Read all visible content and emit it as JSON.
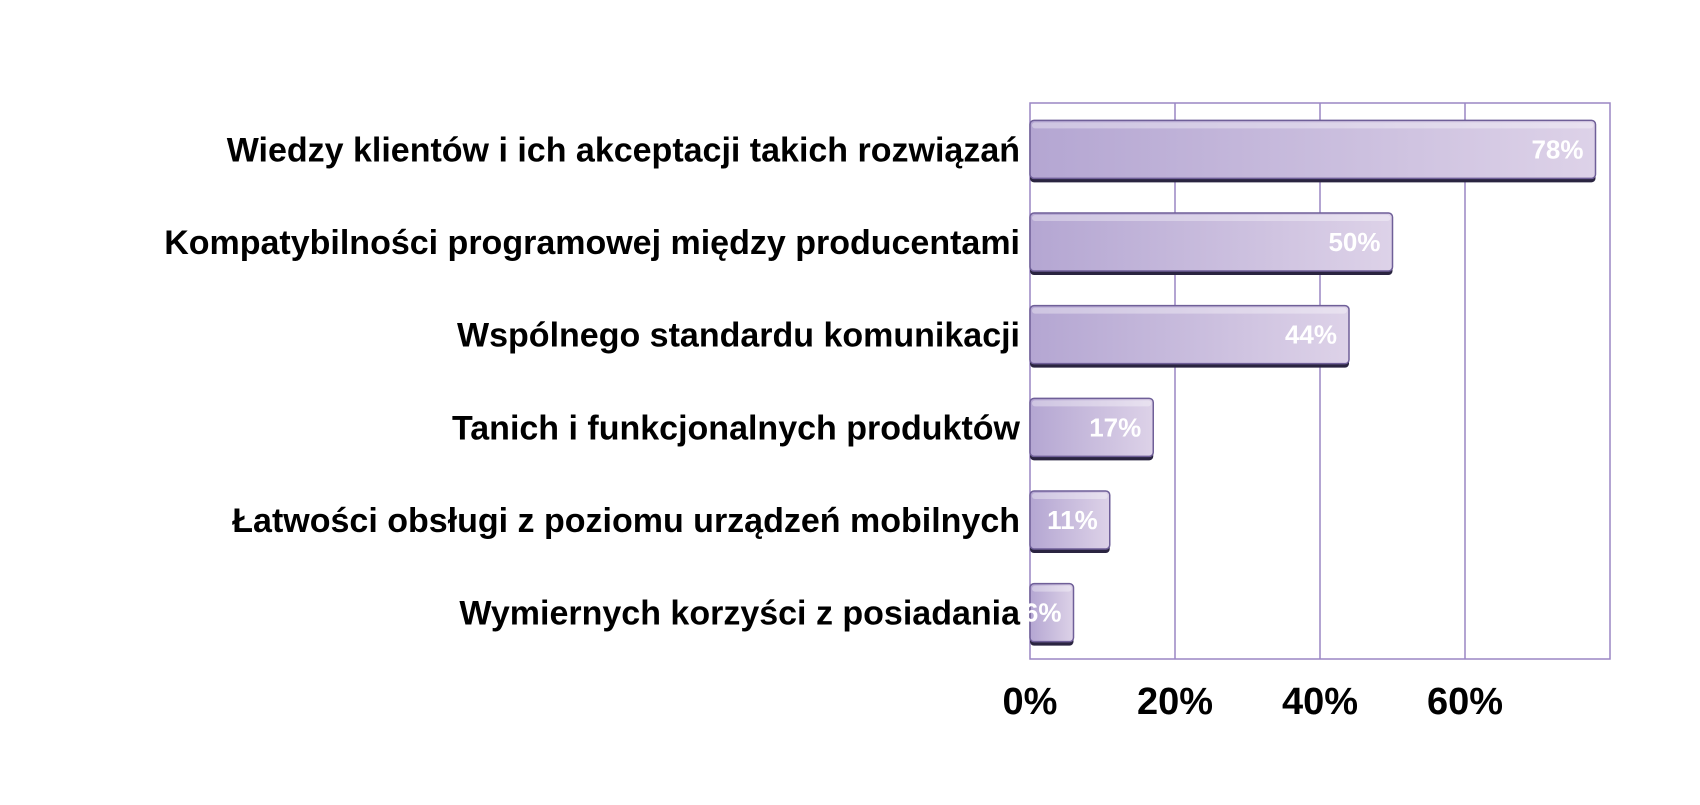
{
  "chart_data": {
    "type": "bar",
    "orientation": "horizontal",
    "title": "",
    "xlabel": "",
    "ylabel": "",
    "categories": [
      "Wiedzy klientów i ich akceptacji takich rozwiązań",
      "Kompatybilności programowej między producentami",
      "Wspólnego standardu komunikacji",
      "Tanich i funkcjonalnych produktów",
      "Łatwości obsługi z poziomu urządzeń mobilnych",
      "Wymiernych korzyści z posiadania"
    ],
    "values": [
      78,
      50,
      44,
      17,
      11,
      6
    ],
    "data_labels": [
      "78%",
      "50%",
      "44%",
      "17%",
      "11%",
      "6%"
    ],
    "xlim": [
      0,
      80
    ],
    "ticks": [
      0,
      20,
      40,
      60
    ],
    "tick_labels": [
      "0%",
      "20%",
      "40%",
      "60%"
    ],
    "grid": true,
    "legend": "none",
    "colors": {
      "bar_light": "#ddd2e8",
      "bar_dark": "#b4a6d2",
      "bar_edge": "#6f5f98",
      "bar_shadow": "#2a2440",
      "grid": "#9a86c4",
      "frame": "#9a86c4",
      "data_label": "#ffffff",
      "text": "#000000"
    }
  }
}
